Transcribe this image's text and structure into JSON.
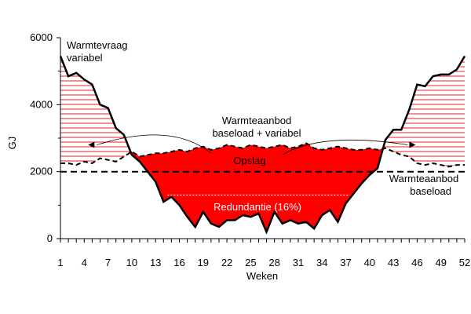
{
  "colors": {
    "demand_line": "#000000",
    "surplus_fill": "#ff0000",
    "hatch": "#e02020",
    "text": "#000000"
  },
  "annotations": {
    "demand_label_1": "Warmtevraag",
    "demand_label_2": "variabel",
    "supply_label_1": "Warmteaanbod",
    "supply_label_2": "baseload + variabel",
    "storage_label": "Opslag",
    "redundancy_label": "Redundantie (16%)",
    "baseload_label_1": "Warmteaanbod",
    "baseload_label_2": "baseload"
  },
  "chart_data": {
    "type": "line",
    "xlabel": "Weken",
    "ylabel": "GJ",
    "xlim": [
      1,
      52
    ],
    "ylim": [
      0,
      6000
    ],
    "x_ticks": [
      1,
      4,
      7,
      10,
      13,
      16,
      19,
      22,
      25,
      28,
      31,
      34,
      37,
      40,
      43,
      46,
      49,
      52
    ],
    "y_ticks": [
      0,
      2000,
      4000,
      6000
    ],
    "weeks": [
      1,
      2,
      3,
      4,
      5,
      6,
      7,
      8,
      9,
      10,
      11,
      12,
      13,
      14,
      15,
      16,
      17,
      18,
      19,
      20,
      21,
      22,
      23,
      24,
      25,
      26,
      27,
      28,
      29,
      30,
      31,
      32,
      33,
      34,
      35,
      36,
      37,
      38,
      39,
      40,
      41,
      42,
      43,
      44,
      45,
      46,
      47,
      48,
      49,
      50,
      51,
      52
    ],
    "series": [
      {
        "name": "Warmtevraag variabel",
        "style": "solid",
        "values": [
          5450,
          4850,
          4950,
          4750,
          4600,
          4000,
          3900,
          3300,
          3100,
          2500,
          2300,
          2000,
          1700,
          1100,
          1250,
          1000,
          650,
          350,
          800,
          450,
          350,
          550,
          550,
          700,
          650,
          750,
          200,
          800,
          450,
          550,
          450,
          500,
          300,
          700,
          850,
          500,
          1050,
          1350,
          1650,
          1900,
          2100,
          2950,
          3250,
          3250,
          3850,
          4600,
          4550,
          4850,
          4900,
          4900,
          5050,
          5450
        ]
      },
      {
        "name": "Warmteaanbod baseload + variabel",
        "style": "dashed",
        "values": [
          2250,
          2250,
          2200,
          2300,
          2250,
          2400,
          2350,
          2300,
          2450,
          2600,
          2450,
          2500,
          2550,
          2550,
          2600,
          2650,
          2600,
          2700,
          2750,
          2650,
          2700,
          2800,
          2750,
          2700,
          2800,
          2750,
          2700,
          2750,
          2800,
          2700,
          2750,
          2850,
          2700,
          2650,
          2700,
          2750,
          2700,
          2650,
          2650,
          2700,
          2650,
          2700,
          2600,
          2500,
          2450,
          2250,
          2200,
          2250,
          2200,
          2150,
          2200,
          2200
        ]
      },
      {
        "name": "Warmteaanbod baseload",
        "style": "dashed",
        "values": [
          2000,
          2000,
          2000,
          2000,
          2000,
          2000,
          2000,
          2000,
          2000,
          2000,
          2000,
          2000,
          2000,
          2000,
          2000,
          2000,
          2000,
          2000,
          2000,
          2000,
          2000,
          2000,
          2000,
          2000,
          2000,
          2000,
          2000,
          2000,
          2000,
          2000,
          2000,
          2000,
          2000,
          2000,
          2000,
          2000,
          2000,
          2000,
          2000,
          2000,
          2000,
          2000,
          2000,
          2000,
          2000,
          2000,
          2000,
          2000,
          2000,
          2000,
          2000,
          2000
        ]
      }
    ],
    "redundancy_level": 1300
  }
}
